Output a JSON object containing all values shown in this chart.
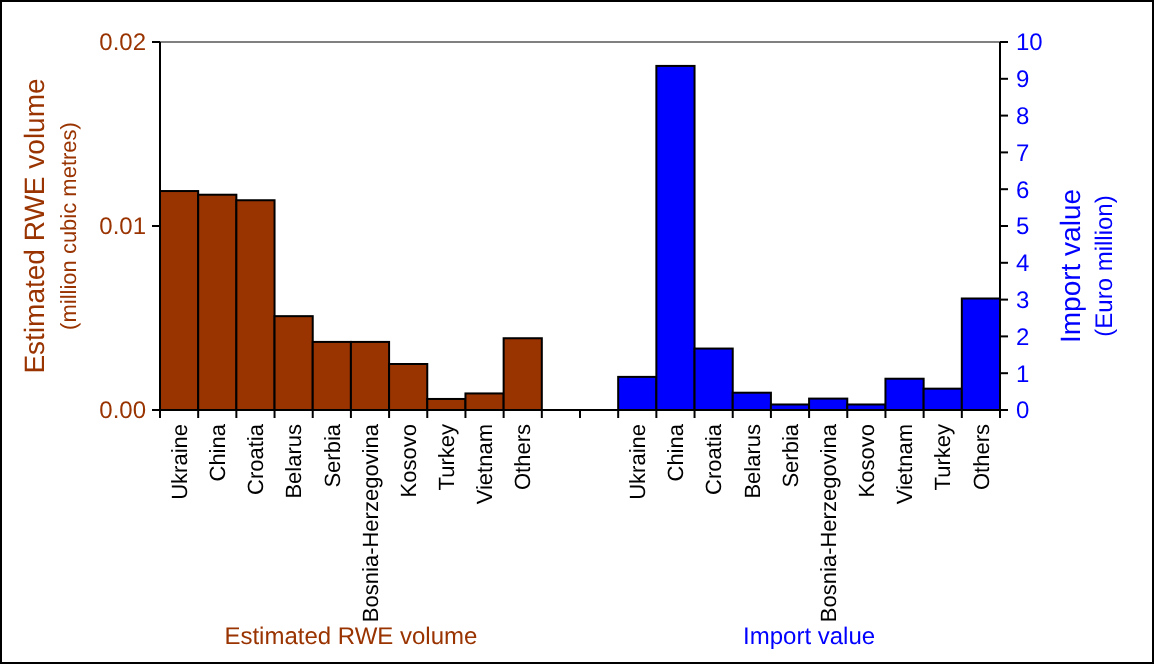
{
  "chart_data": {
    "type": "bar",
    "ylabel": "Estimated RWE volume (million cubic metres)",
    "y2label": "Import value (Euro million)",
    "categories": [
      "Ukraine",
      "China",
      "Croatia",
      "Belarus",
      "Serbia",
      "Bosnia-Herzegovina",
      "Kosovo",
      "Turkey",
      "Vietnam",
      "Others",
      null,
      null,
      "Ukraine",
      "China",
      "Croatia",
      "Belarus",
      "Serbia",
      "Bosnia-Herzegovina",
      "Kosovo",
      "Vietnam",
      "Turkey",
      "Others"
    ],
    "series": [
      {
        "name": "Estimated RWE volume",
        "color": "#993300",
        "values": [
          0.0119,
          0.0117,
          0.0114,
          0.0051,
          0.0037,
          0.0037,
          0.0025,
          0.0006,
          0.0009,
          0.0039,
          null,
          null,
          null,
          null,
          null,
          null,
          null,
          null,
          null,
          null,
          null,
          null
        ]
      },
      {
        "name": "Import value",
        "color": "#0000ff",
        "axis": "y2",
        "values": [
          null,
          null,
          null,
          null,
          null,
          null,
          null,
          null,
          null,
          null,
          null,
          null,
          0.9,
          9.35,
          1.67,
          0.47,
          0.15,
          0.31,
          0.15,
          0.85,
          0.58,
          3.03
        ]
      }
    ],
    "ylim": [
      0,
      0.02
    ],
    "yticks": [
      {
        "value": 0,
        "label": "0.00"
      },
      {
        "value": 0.01,
        "label": "0.01"
      },
      {
        "value": 0.02,
        "label": "0.02"
      }
    ],
    "y2lim": [
      0,
      10
    ],
    "y2ticks": [
      0,
      1,
      2,
      3,
      4,
      5,
      6,
      7,
      8,
      9,
      10
    ],
    "grid": false
  }
}
